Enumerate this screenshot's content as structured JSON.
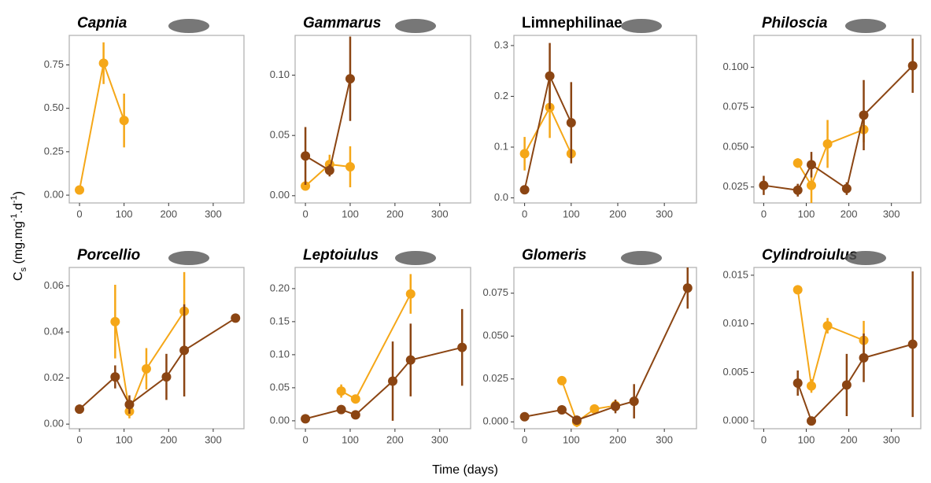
{
  "ylabel": [
    {
      "text": "C"
    },
    {
      "text": "s",
      "script": "sub"
    },
    {
      "text": " (mg.mg"
    },
    {
      "text": "-1",
      "script": "sup"
    },
    {
      "text": ".d"
    },
    {
      "text": "-1",
      "script": "sup"
    },
    {
      "text": ")"
    }
  ],
  "xlabel": "Time (days)",
  "chart_data": [
    {
      "type": "line",
      "title": "Capnia",
      "title_style": "italic",
      "xlim": [
        -23,
        369
      ],
      "xticks": [
        0,
        100,
        200,
        300
      ],
      "ylim": [
        -0.045,
        0.92
      ],
      "yticks": [
        {
          "value": 0,
          "label": "0.00"
        },
        {
          "value": 0.25,
          "label": "0.25"
        },
        {
          "value": 0.5,
          "label": "0.50"
        },
        {
          "value": 0.75,
          "label": "0.75"
        }
      ],
      "series": [
        {
          "color": "#f5a718",
          "x": [
            0,
            54,
            100
          ],
          "values": [
            0.03,
            0.76,
            0.43
          ],
          "errors": [
            0.005,
            0.12,
            0.155
          ]
        }
      ]
    },
    {
      "type": "line",
      "title": "Gammarus",
      "title_style": "italic",
      "xlim": [
        -23,
        369
      ],
      "xticks": [
        0,
        100,
        200,
        300
      ],
      "ylim": [
        -0.006,
        0.133
      ],
      "yticks": [
        {
          "value": 0,
          "label": "0.00"
        },
        {
          "value": 0.05,
          "label": "0.05"
        },
        {
          "value": 0.1,
          "label": "0.10"
        }
      ],
      "series": [
        {
          "color": "#f5a718",
          "x": [
            0,
            54,
            100
          ],
          "values": [
            0.008,
            0.026,
            0.024
          ],
          "errors": [
            0.003,
            0.008,
            0.017
          ]
        },
        {
          "color": "#8b4513",
          "x": [
            0,
            54,
            100
          ],
          "values": [
            0.033,
            0.021,
            0.097
          ],
          "errors": [
            0.024,
            0.005,
            0.035
          ]
        }
      ]
    },
    {
      "type": "line",
      "title": "Limnephilinae",
      "title_style": "normal",
      "xlim": [
        -23,
        369
      ],
      "xticks": [
        0,
        100,
        200,
        300
      ],
      "ylim": [
        -0.01,
        0.32
      ],
      "yticks": [
        {
          "value": 0,
          "label": "0.0"
        },
        {
          "value": 0.1,
          "label": "0.1"
        },
        {
          "value": 0.2,
          "label": "0.2"
        },
        {
          "value": 0.3,
          "label": "0.3"
        }
      ],
      "series": [
        {
          "color": "#f5a718",
          "x": [
            0,
            54,
            100
          ],
          "values": [
            0.087,
            0.178,
            0.087
          ],
          "errors": [
            0.033,
            0.06,
            0.01
          ]
        },
        {
          "color": "#8b4513",
          "x": [
            0,
            54,
            100
          ],
          "values": [
            0.016,
            0.24,
            0.148
          ],
          "errors": [
            0.005,
            0.065,
            0.08
          ]
        }
      ]
    },
    {
      "type": "line",
      "title": "Philoscia",
      "title_style": "italic",
      "xlim": [
        -23,
        369
      ],
      "xticks": [
        0,
        100,
        200,
        300
      ],
      "ylim": [
        0.015,
        0.12
      ],
      "yticks": [
        {
          "value": 0.025,
          "label": "0.025"
        },
        {
          "value": 0.05,
          "label": "0.050"
        },
        {
          "value": 0.075,
          "label": "0.075"
        },
        {
          "value": 0.1,
          "label": "0.100"
        }
      ],
      "series": [
        {
          "color": "#f5a718",
          "x": [
            80,
            112,
            150,
            235
          ],
          "values": [
            0.04,
            0.026,
            0.052,
            0.061
          ],
          "errors": [
            0.003,
            0.011,
            0.015,
            0.008
          ]
        },
        {
          "color": "#8b4513",
          "x": [
            0,
            80,
            112,
            195,
            235,
            350
          ],
          "values": [
            0.026,
            0.023,
            0.039,
            0.024,
            0.07,
            0.101
          ],
          "errors": [
            0.006,
            0.004,
            0.008,
            0.004,
            0.022,
            0.017
          ]
        }
      ]
    },
    {
      "type": "line",
      "title": "Porcellio",
      "title_style": "italic",
      "xlim": [
        -23,
        369
      ],
      "xticks": [
        0,
        100,
        200,
        300
      ],
      "ylim": [
        -0.002,
        0.068
      ],
      "yticks": [
        {
          "value": 0,
          "label": "0.00"
        },
        {
          "value": 0.02,
          "label": "0.02"
        },
        {
          "value": 0.04,
          "label": "0.04"
        },
        {
          "value": 0.06,
          "label": "0.06"
        }
      ],
      "series": [
        {
          "color": "#f5a718",
          "x": [
            80,
            112,
            150,
            235
          ],
          "values": [
            0.0445,
            0.0055,
            0.024,
            0.049
          ],
          "errors": [
            0.016,
            0.003,
            0.009,
            0.017
          ]
        },
        {
          "color": "#8b4513",
          "x": [
            0,
            80,
            112,
            195,
            235,
            350
          ],
          "values": [
            0.0065,
            0.0205,
            0.0085,
            0.0205,
            0.032,
            0.046
          ],
          "errors": [
            0.002,
            0.005,
            0.004,
            0.01,
            0.02,
            0.001
          ]
        }
      ]
    },
    {
      "type": "line",
      "title": "Leptoiulus",
      "title_style": "italic",
      "xlim": [
        -23,
        369
      ],
      "xticks": [
        0,
        100,
        200,
        300
      ],
      "ylim": [
        -0.012,
        0.232
      ],
      "yticks": [
        {
          "value": 0,
          "label": "0.00"
        },
        {
          "value": 0.05,
          "label": "0.05"
        },
        {
          "value": 0.1,
          "label": "0.10"
        },
        {
          "value": 0.15,
          "label": "0.15"
        },
        {
          "value": 0.2,
          "label": "0.20"
        }
      ],
      "series": [
        {
          "color": "#f5a718",
          "x": [
            80,
            112,
            235
          ],
          "values": [
            0.045,
            0.033,
            0.192
          ],
          "errors": [
            0.01,
            0.005,
            0.03
          ]
        },
        {
          "color": "#8b4513",
          "x": [
            0,
            80,
            112,
            195,
            235,
            350
          ],
          "values": [
            0.003,
            0.017,
            0.009,
            0.06,
            0.092,
            0.111
          ],
          "errors": [
            0.002,
            0.003,
            0.003,
            0.06,
            0.055,
            0.058
          ]
        }
      ]
    },
    {
      "type": "line",
      "title": "Glomeris",
      "title_style": "italic",
      "xlim": [
        -23,
        369
      ],
      "xticks": [
        0,
        100,
        200,
        300
      ],
      "ylim": [
        -0.004,
        0.09
      ],
      "yticks": [
        {
          "value": 0,
          "label": "0.000"
        },
        {
          "value": 0.025,
          "label": "0.025"
        },
        {
          "value": 0.05,
          "label": "0.050"
        },
        {
          "value": 0.075,
          "label": "0.075"
        }
      ],
      "series": [
        {
          "color": "#f5a718",
          "x": [
            80,
            112,
            150,
            195
          ],
          "values": [
            0.024,
            0.0,
            0.0075,
            0.0095
          ],
          "errors": [
            0.001,
            0.003,
            0.002,
            0.002
          ]
        },
        {
          "color": "#8b4513",
          "x": [
            0,
            80,
            112,
            195,
            235,
            350
          ],
          "values": [
            0.003,
            0.007,
            0.001,
            0.009,
            0.012,
            0.078
          ],
          "errors": [
            0.002,
            0.002,
            0.002,
            0.004,
            0.01,
            0.012
          ]
        }
      ]
    },
    {
      "type": "line",
      "title": "Cylindroiulus",
      "title_style": "italic",
      "xlim": [
        -23,
        369
      ],
      "xticks": [
        0,
        100,
        200,
        300
      ],
      "ylim": [
        -0.0008,
        0.0158
      ],
      "yticks": [
        {
          "value": 0,
          "label": "0.000"
        },
        {
          "value": 0.005,
          "label": "0.005"
        },
        {
          "value": 0.01,
          "label": "0.010"
        },
        {
          "value": 0.015,
          "label": "0.015"
        }
      ],
      "series": [
        {
          "color": "#f5a718",
          "x": [
            80,
            112,
            150,
            235
          ],
          "values": [
            0.0135,
            0.0036,
            0.0098,
            0.0083
          ],
          "errors": [
            0.0002,
            0.0007,
            0.0008,
            0.002
          ]
        },
        {
          "color": "#8b4513",
          "x": [
            80,
            112,
            195,
            235,
            350
          ],
          "values": [
            0.0039,
            0.0,
            0.0037,
            0.0065,
            0.0079
          ],
          "errors": [
            0.0013,
            0.0002,
            0.0032,
            0.0025,
            0.0075
          ]
        }
      ]
    }
  ]
}
